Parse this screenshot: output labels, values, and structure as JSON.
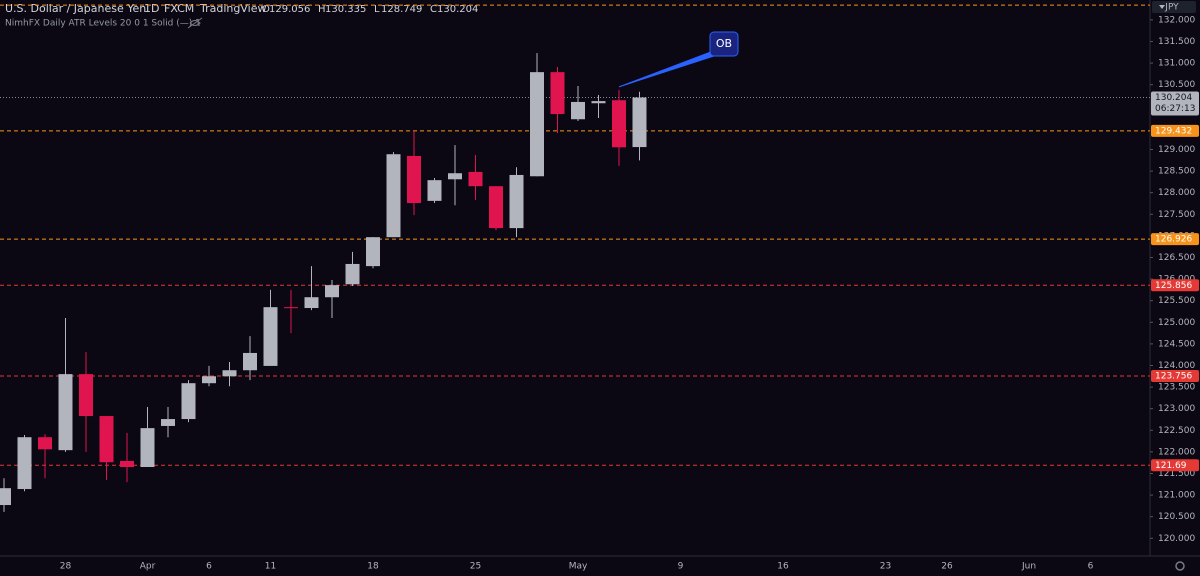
{
  "chart_data": {
    "type": "candlestick",
    "title": "U.S. Dollar / Japanese Yen",
    "interval": "1D",
    "source": "FXCM",
    "platform": "TradingView",
    "ohlc_header": [
      {
        "label": "O",
        "value": "129.056"
      },
      {
        "label": "H",
        "value": "130.335"
      },
      {
        "label": "L",
        "value": "128.749"
      },
      {
        "label": "C",
        "value": "130.204"
      }
    ],
    "indicator": "NimhFX Daily ATR Levels 20 0 1 Solid (—) 1",
    "currency": "JPY",
    "countdown": "06:27:13",
    "annotation": {
      "text": "OB",
      "target_index": 30
    },
    "categories": [
      null,
      null,
      null,
      "28",
      null,
      null,
      null,
      "Apr",
      null,
      null,
      "6",
      null,
      null,
      "11",
      null,
      null,
      null,
      null,
      "18",
      null,
      null,
      null,
      null,
      "25",
      null,
      null,
      null,
      null,
      "May",
      null,
      null,
      null,
      null,
      "9",
      null,
      null,
      null,
      null,
      "16",
      null,
      null,
      null,
      null,
      "23",
      null,
      null,
      "26",
      null,
      null,
      null,
      "Jun",
      null,
      null,
      "6",
      null,
      null
    ],
    "open": [
      120.77,
      121.14,
      122.34,
      122.04,
      123.8,
      122.83,
      121.79,
      121.65,
      122.6,
      122.76,
      123.59,
      123.75,
      123.89,
      123.99,
      125.35,
      125.33,
      125.58,
      125.88,
      126.3,
      126.97,
      128.85,
      127.81,
      128.31,
      128.48,
      128.15,
      127.18,
      128.38,
      130.79,
      129.7,
      130.07,
      130.14,
      129.056,
      null,
      null,
      null,
      null,
      null,
      null,
      null,
      null,
      null,
      null,
      null,
      null,
      null,
      null,
      null,
      null,
      null,
      null,
      null,
      null,
      null,
      null,
      null,
      null
    ],
    "high": [
      121.39,
      122.39,
      122.41,
      125.1,
      124.31,
      122.83,
      122.44,
      123.04,
      123.04,
      123.66,
      123.99,
      124.08,
      124.68,
      125.75,
      125.75,
      126.3,
      125.98,
      126.63,
      126.97,
      128.94,
      129.43,
      128.34,
      129.1,
      128.87,
      128.15,
      128.59,
      131.23,
      130.91,
      130.47,
      130.26,
      130.38,
      130.335,
      null,
      null,
      null,
      null,
      null,
      null,
      null,
      null,
      null,
      null,
      null,
      null,
      null,
      null,
      null,
      null,
      null,
      null,
      null,
      null,
      null,
      null,
      null,
      null
    ],
    "low": [
      120.61,
      121.09,
      121.39,
      122.0,
      122.0,
      121.35,
      121.3,
      121.65,
      122.34,
      122.69,
      123.52,
      123.52,
      123.66,
      123.99,
      124.75,
      125.28,
      125.1,
      125.84,
      126.25,
      126.97,
      127.48,
      127.76,
      127.71,
      127.83,
      127.13,
      126.97,
      128.38,
      129.38,
      129.66,
      129.73,
      128.62,
      128.749,
      null,
      null,
      null,
      null,
      null,
      null,
      null,
      null,
      null,
      null,
      null,
      null,
      null,
      null,
      null,
      null,
      null,
      null,
      null,
      null,
      null,
      null,
      null,
      null
    ],
    "close": [
      121.16,
      122.34,
      122.06,
      123.8,
      122.83,
      121.76,
      121.65,
      122.55,
      122.76,
      123.59,
      123.75,
      123.89,
      124.29,
      125.35,
      125.33,
      125.58,
      125.86,
      126.35,
      126.97,
      128.89,
      127.76,
      128.29,
      128.45,
      128.15,
      127.18,
      128.41,
      130.79,
      129.82,
      130.1,
      130.12,
      129.05,
      130.204,
      null,
      null,
      null,
      null,
      null,
      null,
      null,
      null,
      null,
      null,
      null,
      null,
      null,
      null,
      null,
      null,
      null,
      null,
      null,
      null,
      null,
      null,
      null,
      null
    ],
    "up_color": "#b2b5be",
    "down_color": "#e0144f",
    "ylim": [
      119.59,
      132.46
    ],
    "yticks": [
      {
        "value": 132,
        "label": "132.000"
      },
      {
        "value": 131.5,
        "label": "131.500"
      },
      {
        "value": 131,
        "label": "131.000"
      },
      {
        "value": 130.5,
        "label": "130.500"
      },
      {
        "value": 129,
        "label": "129.000"
      },
      {
        "value": 128.5,
        "label": "128.500"
      },
      {
        "value": 128,
        "label": "128.000"
      },
      {
        "value": 127.5,
        "label": "127.500"
      },
      {
        "value": 127,
        "label": "127.000"
      },
      {
        "value": 126.5,
        "label": "126.500"
      },
      {
        "value": 126,
        "label": "126.000"
      },
      {
        "value": 125.5,
        "label": "125.500"
      },
      {
        "value": 125,
        "label": "125.000"
      },
      {
        "value": 124.5,
        "label": "124.500"
      },
      {
        "value": 124,
        "label": "124.000"
      },
      {
        "value": 123.5,
        "label": "123.500"
      },
      {
        "value": 123,
        "label": "123.000"
      },
      {
        "value": 122.5,
        "label": "122.500"
      },
      {
        "value": 122,
        "label": "122.000"
      },
      {
        "value": 121.5,
        "label": "121.500"
      },
      {
        "value": 121,
        "label": "121.000"
      },
      {
        "value": 120.5,
        "label": "120.500"
      },
      {
        "value": 120,
        "label": "120.000"
      }
    ],
    "levels": [
      {
        "value": 132.34,
        "color": "#f7931a"
      },
      {
        "value": 129.432,
        "color": "#f7931a"
      },
      {
        "value": 126.926,
        "color": "#f7931a"
      },
      {
        "value": 125.856,
        "color": "#e53935"
      },
      {
        "value": 123.756,
        "color": "#e53935"
      },
      {
        "value": 121.69,
        "color": "#e53935"
      }
    ],
    "last_price": {
      "value": 130.204,
      "color": "#9598a1"
    }
  }
}
